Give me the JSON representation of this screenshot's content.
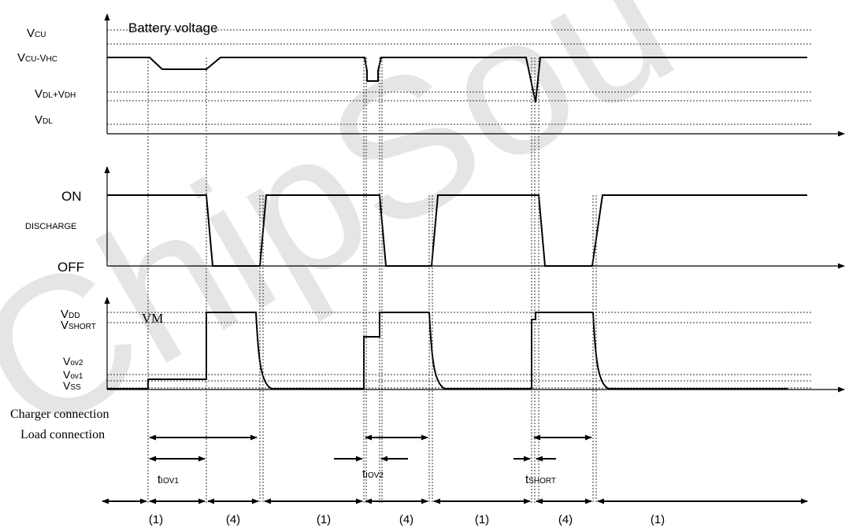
{
  "watermark": "ChipSou",
  "panel1": {
    "legend": "Battery voltage",
    "levels": [
      {
        "main": "V",
        "sub": "CU"
      },
      {
        "main": "V",
        "sub": "CU",
        "mid": "-V",
        "sub2": "HC"
      },
      {
        "main": "V",
        "sub": "DL",
        "mid": "+V",
        "sub2": "DH"
      },
      {
        "main": "V",
        "sub": "DL"
      }
    ]
  },
  "panel2": {
    "on": "ON",
    "signal": "DISCHARGE",
    "off": "OFF"
  },
  "panel3": {
    "signal": "VM",
    "levels": [
      {
        "main": "V",
        "sub": "DD"
      },
      {
        "main": "V",
        "sub": "SHORT"
      },
      {
        "main": "V",
        "sub": "ov2"
      },
      {
        "main": "V",
        "sub": "ov1"
      },
      {
        "main": "V",
        "sub": "SS"
      }
    ]
  },
  "connections": {
    "charger": "Charger connection",
    "load": "Load connection"
  },
  "timings": [
    {
      "main": "t",
      "sub": "IOV1"
    },
    {
      "main": "t",
      "sub": "IOV2"
    },
    {
      "main": "t",
      "sub": "SHORT"
    }
  ],
  "states": [
    "(1)",
    "(4)",
    "(1)",
    "(4)",
    "(1)",
    "(4)",
    "(1)"
  ],
  "colors": {
    "line": "#000000",
    "dotted": "#333333",
    "watermark": "#e6e6e6"
  }
}
